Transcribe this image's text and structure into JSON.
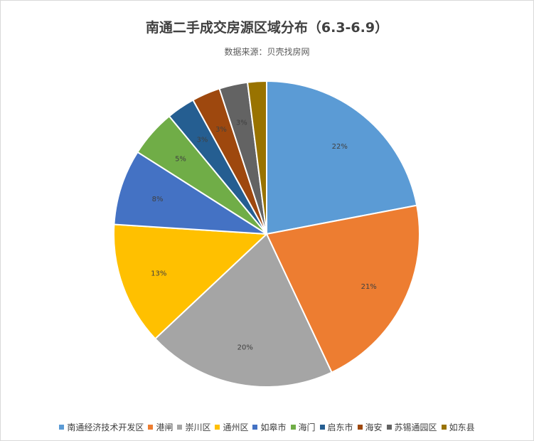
{
  "chart_data": {
    "type": "pie",
    "title": "南通二手成交房源区域分布（6.3-6.9）",
    "subtitle": "数据来源：贝壳找房网",
    "categories": [
      "南通经济技术开发区",
      "港闸",
      "崇川区",
      "通州区",
      "如皋市",
      "海门",
      "启东市",
      "海安",
      "苏锡通园区",
      "如东县"
    ],
    "values": [
      22,
      21,
      20,
      13,
      8,
      5,
      3,
      3,
      3,
      2
    ],
    "labels": [
      "22%",
      "21%",
      "20%",
      "13%",
      "8%",
      "5%",
      "3%",
      "3%",
      "3%",
      ""
    ],
    "colors": [
      "#5B9BD5",
      "#ED7D31",
      "#A5A5A5",
      "#FFC000",
      "#4472C4",
      "#70AD47",
      "#255E91",
      "#9E480E",
      "#636363",
      "#997300"
    ],
    "legend_position": "bottom"
  }
}
